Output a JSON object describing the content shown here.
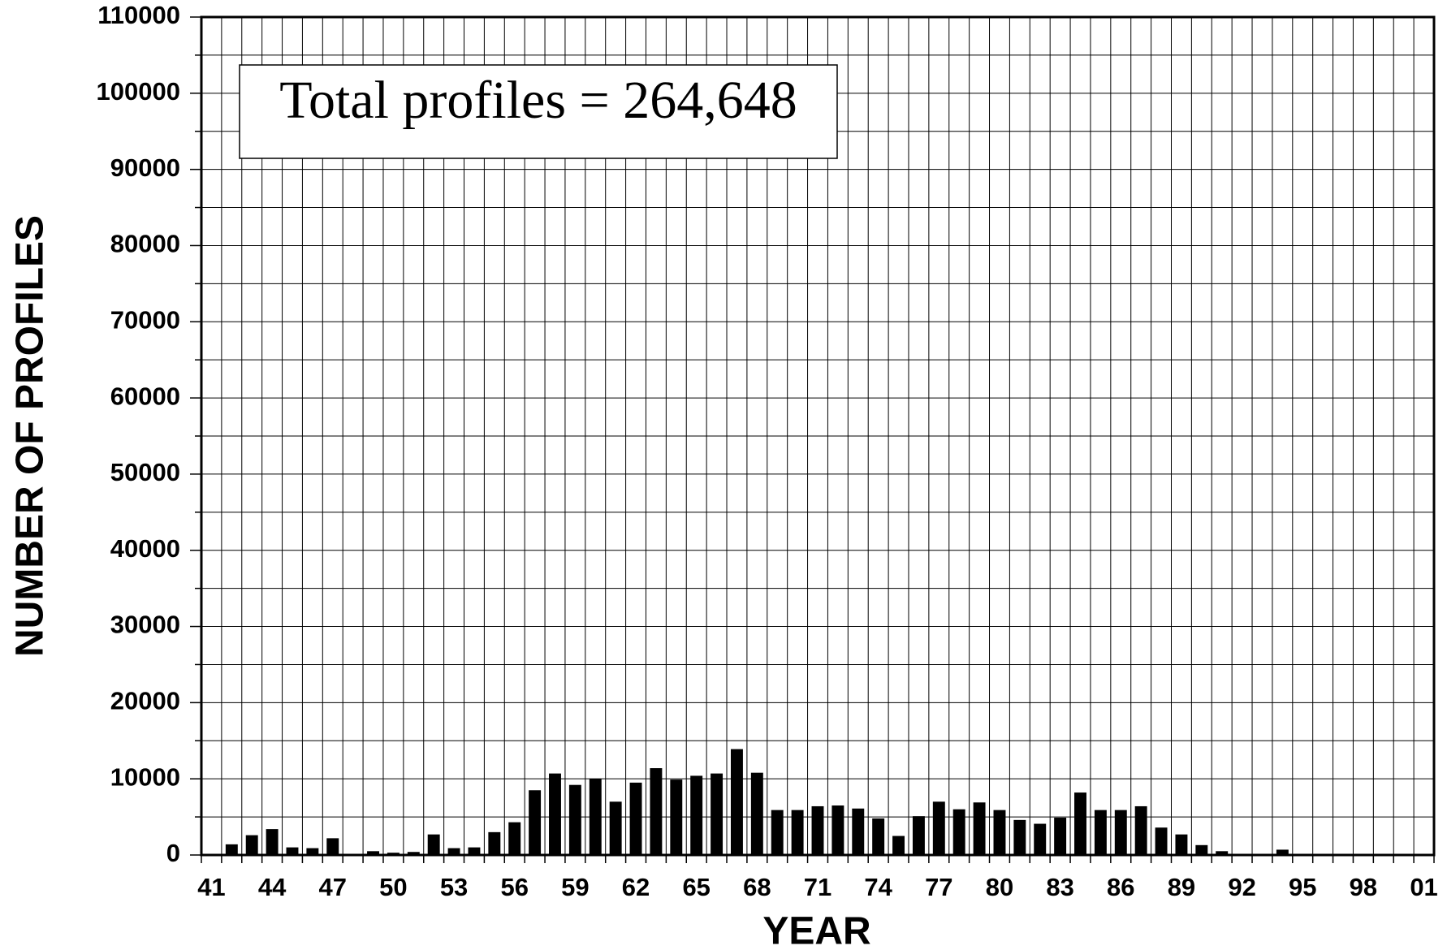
{
  "chart_data": {
    "type": "bar",
    "xlabel": "YEAR",
    "ylabel": "NUMBER OF PROFILES",
    "annotation": "Total profiles = 264,648",
    "categories": [
      "41",
      null,
      null,
      "44",
      null,
      null,
      "47",
      null,
      null,
      "50",
      null,
      null,
      "53",
      null,
      null,
      "56",
      null,
      null,
      "59",
      null,
      null,
      "62",
      null,
      null,
      "65",
      null,
      null,
      "68",
      null,
      null,
      "71",
      null,
      null,
      "74",
      null,
      null,
      "77",
      null,
      null,
      "80",
      null,
      null,
      "83",
      null,
      null,
      "86",
      null,
      null,
      "89",
      null,
      null,
      "92",
      null,
      null,
      "95",
      null,
      null,
      "98",
      null,
      null,
      "01"
    ],
    "values": [
      0,
      1400,
      2600,
      3400,
      1000,
      900,
      2200,
      0,
      500,
      300,
      400,
      2700,
      900,
      1000,
      3000,
      4300,
      8500,
      10700,
      9200,
      10000,
      7000,
      9500,
      11400,
      9900,
      10400,
      10700,
      13900,
      10800,
      5900,
      5900,
      6400,
      6500,
      6100,
      4800,
      2500,
      5100,
      7000,
      6000,
      6900,
      5900,
      4600,
      4100,
      4900,
      8200,
      5900,
      5900,
      6400,
      3600,
      2700,
      1300,
      500,
      100,
      100,
      700,
      0,
      0,
      0,
      0,
      0,
      0,
      0
    ],
    "color": "#000000",
    "ylim": [
      0,
      110000
    ],
    "yticks": [
      0,
      10000,
      20000,
      30000,
      40000,
      50000,
      60000,
      70000,
      80000,
      90000,
      100000,
      110000
    ],
    "y_minor_ticks": [
      5000,
      15000,
      25000,
      35000,
      45000,
      55000,
      65000,
      75000,
      85000,
      95000,
      105000
    ],
    "grid": true
  }
}
